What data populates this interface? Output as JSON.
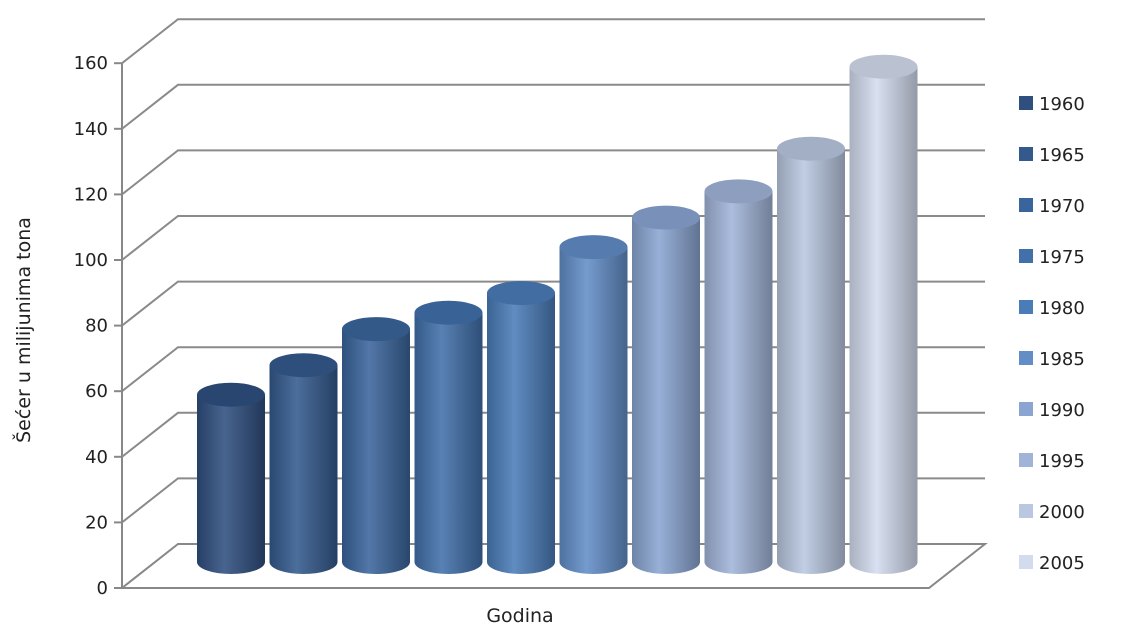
{
  "chart_data": {
    "type": "bar",
    "style": "3d-cylinder",
    "title": "",
    "xlabel": "Godina",
    "ylabel": "Šećer u milijunima tona",
    "ylim": [
      0,
      160
    ],
    "yticks": [
      "0",
      "20",
      "40",
      "60",
      "80",
      "100",
      "120",
      "140",
      "160"
    ],
    "grid": true,
    "legend_position": "right",
    "series": [
      {
        "name": "1960",
        "value": 51,
        "color": "#2f4f7f"
      },
      {
        "name": "1965",
        "value": 60,
        "color": "#345a8d"
      },
      {
        "name": "1970",
        "value": 71,
        "color": "#3a659c"
      },
      {
        "name": "1975",
        "value": 76,
        "color": "#4170aa"
      },
      {
        "name": "1980",
        "value": 82,
        "color": "#4a7cb8"
      },
      {
        "name": "1985",
        "value": 96,
        "color": "#628dc7"
      },
      {
        "name": "1990",
        "value": 105,
        "color": "#8aa5d1"
      },
      {
        "name": "1995",
        "value": 113,
        "color": "#a1b4d8"
      },
      {
        "name": "2000",
        "value": 126,
        "color": "#b9c7e0"
      },
      {
        "name": "2005",
        "value": 151,
        "color": "#d3dcef"
      }
    ]
  }
}
